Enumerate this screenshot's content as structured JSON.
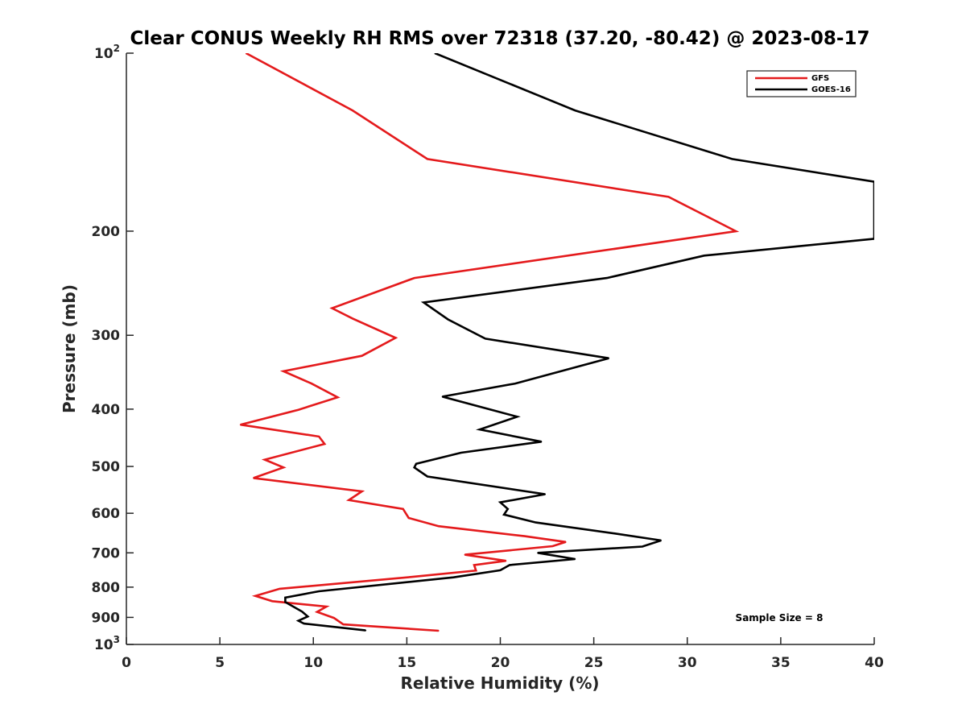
{
  "chart_data": {
    "type": "line",
    "title": "Clear CONUS Weekly RH RMS over 72318 (37.20, -80.42) @ 2023-08-17",
    "xlabel": "Relative Humidity (%)",
    "ylabel": "Pressure (mb)",
    "xlim": [
      0,
      40
    ],
    "ylim": [
      100,
      1000
    ],
    "y_scale": "log",
    "y_reversed": true,
    "grid": false,
    "legend_position": "top-right",
    "x_ticks": [
      0,
      5,
      10,
      15,
      20,
      25,
      30,
      35,
      40
    ],
    "y_ticks": [
      {
        "value": 100,
        "label": "10",
        "sup": "2"
      },
      {
        "value": 200,
        "label": "200",
        "sup": ""
      },
      {
        "value": 300,
        "label": "300",
        "sup": ""
      },
      {
        "value": 400,
        "label": "400",
        "sup": ""
      },
      {
        "value": 500,
        "label": "500",
        "sup": ""
      },
      {
        "value": 600,
        "label": "600",
        "sup": ""
      },
      {
        "value": 700,
        "label": "700",
        "sup": ""
      },
      {
        "value": 800,
        "label": "800",
        "sup": ""
      },
      {
        "value": 900,
        "label": "900",
        "sup": ""
      },
      {
        "value": 1000,
        "label": "10",
        "sup": "3"
      }
    ],
    "annotation": "Sample Size = 8",
    "series": [
      {
        "name": "GFS",
        "color": "#e41a1c",
        "points": [
          {
            "x": 6.4,
            "y": 100
          },
          {
            "x": 12.1,
            "y": 125
          },
          {
            "x": 16.1,
            "y": 151
          },
          {
            "x": 29.0,
            "y": 175
          },
          {
            "x": 32.6,
            "y": 200
          },
          {
            "x": 15.4,
            "y": 240
          },
          {
            "x": 11.0,
            "y": 270
          },
          {
            "x": 12.1,
            "y": 281
          },
          {
            "x": 14.4,
            "y": 303
          },
          {
            "x": 12.6,
            "y": 325
          },
          {
            "x": 8.4,
            "y": 345
          },
          {
            "x": 9.9,
            "y": 362
          },
          {
            "x": 11.3,
            "y": 382
          },
          {
            "x": 9.2,
            "y": 401
          },
          {
            "x": 6.1,
            "y": 425
          },
          {
            "x": 10.3,
            "y": 445
          },
          {
            "x": 10.6,
            "y": 458
          },
          {
            "x": 7.4,
            "y": 487
          },
          {
            "x": 8.4,
            "y": 502
          },
          {
            "x": 6.8,
            "y": 523
          },
          {
            "x": 12.6,
            "y": 551
          },
          {
            "x": 11.9,
            "y": 570
          },
          {
            "x": 14.8,
            "y": 590
          },
          {
            "x": 15.1,
            "y": 611
          },
          {
            "x": 16.7,
            "y": 631
          },
          {
            "x": 21.3,
            "y": 656
          },
          {
            "x": 23.5,
            "y": 671
          },
          {
            "x": 22.8,
            "y": 682
          },
          {
            "x": 18.1,
            "y": 705
          },
          {
            "x": 20.3,
            "y": 722
          },
          {
            "x": 18.6,
            "y": 734
          },
          {
            "x": 18.7,
            "y": 750
          },
          {
            "x": 15.2,
            "y": 769
          },
          {
            "x": 8.2,
            "y": 805
          },
          {
            "x": 6.9,
            "y": 828
          },
          {
            "x": 7.8,
            "y": 845
          },
          {
            "x": 10.7,
            "y": 863
          },
          {
            "x": 10.2,
            "y": 881
          },
          {
            "x": 11.1,
            "y": 902
          },
          {
            "x": 11.6,
            "y": 925
          },
          {
            "x": 16.7,
            "y": 948
          }
        ]
      },
      {
        "name": "GOES-16",
        "color": "#000000",
        "points": [
          {
            "x": 16.5,
            "y": 100
          },
          {
            "x": 24.0,
            "y": 125
          },
          {
            "x": 32.4,
            "y": 151
          },
          {
            "x": 40.0,
            "y": 165
          },
          {
            "x": 40.0,
            "y": 206
          },
          {
            "x": 30.9,
            "y": 220
          },
          {
            "x": 25.7,
            "y": 240
          },
          {
            "x": 15.9,
            "y": 264
          },
          {
            "x": 17.2,
            "y": 282
          },
          {
            "x": 19.2,
            "y": 304
          },
          {
            "x": 25.8,
            "y": 328
          },
          {
            "x": 20.8,
            "y": 362
          },
          {
            "x": 16.9,
            "y": 381
          },
          {
            "x": 20.9,
            "y": 412
          },
          {
            "x": 18.9,
            "y": 433
          },
          {
            "x": 22.2,
            "y": 454
          },
          {
            "x": 17.9,
            "y": 474
          },
          {
            "x": 15.5,
            "y": 495
          },
          {
            "x": 15.4,
            "y": 502
          },
          {
            "x": 16.1,
            "y": 520
          },
          {
            "x": 22.4,
            "y": 557
          },
          {
            "x": 20.0,
            "y": 575
          },
          {
            "x": 20.4,
            "y": 590
          },
          {
            "x": 20.2,
            "y": 603
          },
          {
            "x": 21.9,
            "y": 622
          },
          {
            "x": 26.1,
            "y": 649
          },
          {
            "x": 28.6,
            "y": 667
          },
          {
            "x": 27.6,
            "y": 683
          },
          {
            "x": 22.0,
            "y": 700
          },
          {
            "x": 24.0,
            "y": 717
          },
          {
            "x": 20.5,
            "y": 734
          },
          {
            "x": 20.0,
            "y": 749
          },
          {
            "x": 17.5,
            "y": 770
          },
          {
            "x": 10.3,
            "y": 813
          },
          {
            "x": 8.5,
            "y": 833
          },
          {
            "x": 8.5,
            "y": 848
          },
          {
            "x": 9.4,
            "y": 880
          },
          {
            "x": 9.7,
            "y": 897
          },
          {
            "x": 9.2,
            "y": 912
          },
          {
            "x": 9.5,
            "y": 922
          },
          {
            "x": 12.8,
            "y": 947
          }
        ]
      }
    ]
  }
}
